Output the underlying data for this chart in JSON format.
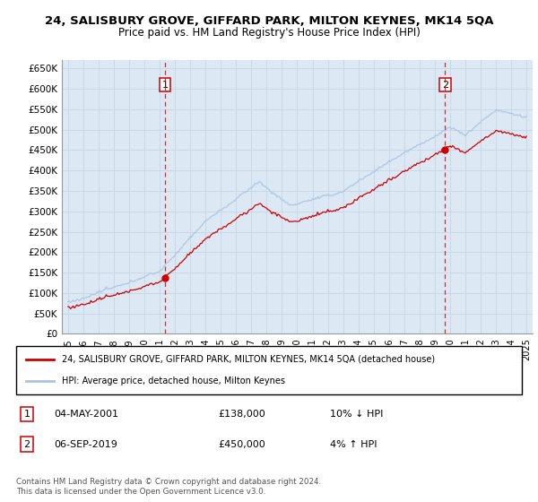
{
  "title": "24, SALISBURY GROVE, GIFFARD PARK, MILTON KEYNES, MK14 5QA",
  "subtitle": "Price paid vs. HM Land Registry's House Price Index (HPI)",
  "ylim": [
    0,
    670000
  ],
  "yticks": [
    0,
    50000,
    100000,
    150000,
    200000,
    250000,
    300000,
    350000,
    400000,
    450000,
    500000,
    550000,
    600000,
    650000
  ],
  "ytick_labels": [
    "£0",
    "£50K",
    "£100K",
    "£150K",
    "£200K",
    "£250K",
    "£300K",
    "£350K",
    "£400K",
    "£450K",
    "£500K",
    "£550K",
    "£600K",
    "£650K"
  ],
  "hpi_color": "#aac4e0",
  "price_color": "#cc0000",
  "vline_color": "#cc0000",
  "grid_color": "#c8d8e8",
  "bg_color": "#dce8f4",
  "sale1_year": 2001.35,
  "sale1_price": 138000,
  "sale2_year": 2019.68,
  "sale2_price": 450000,
  "legend_red_label": "24, SALISBURY GROVE, GIFFARD PARK, MILTON KEYNES, MK14 5QA (detached house)",
  "legend_blue_label": "HPI: Average price, detached house, Milton Keynes",
  "footnote": "Contains HM Land Registry data © Crown copyright and database right 2024.\nThis data is licensed under the Open Government Licence v3.0.",
  "annotation1": "1",
  "annotation2": "2",
  "table_row1": [
    "1",
    "04-MAY-2001",
    "£138,000",
    "10% ↓ HPI"
  ],
  "table_row2": [
    "2",
    "06-SEP-2019",
    "£450,000",
    "4% ↑ HPI"
  ]
}
